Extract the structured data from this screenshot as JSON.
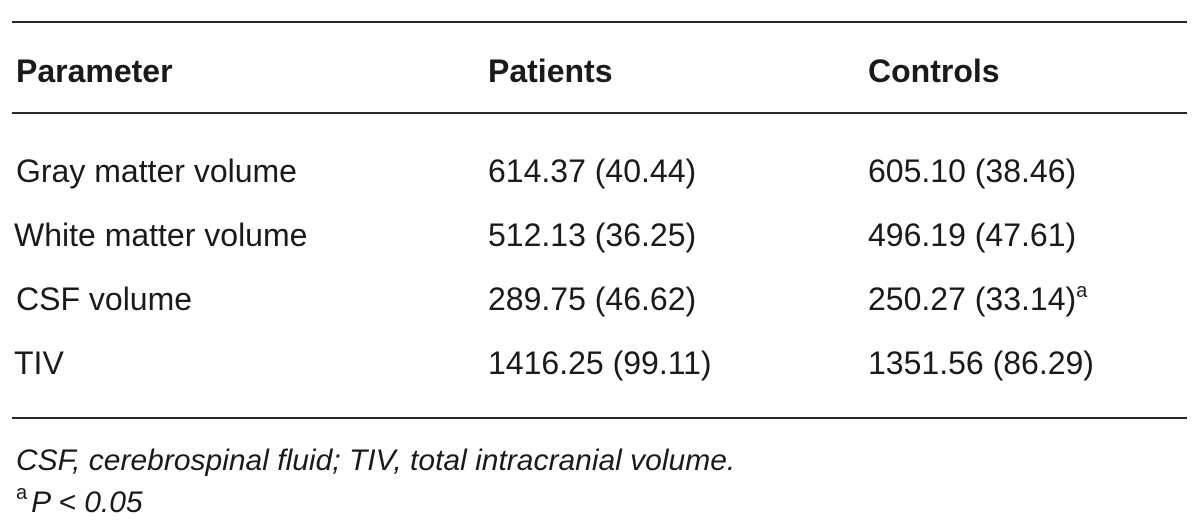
{
  "table": {
    "headers": [
      "Parameter",
      "Patients",
      "Controls"
    ],
    "rows": [
      {
        "parameter": "Gray matter volume",
        "patients": "614.37 (40.44)",
        "controls": "605.10 (38.46)",
        "controls_mark": ""
      },
      {
        "parameter": "White matter volume",
        "patients": "512.13 (36.25)",
        "controls": "496.19 (47.61)",
        "controls_mark": ""
      },
      {
        "parameter": "CSF volume",
        "patients": "289.75 (46.62)",
        "controls": "250.27 (33.14)",
        "controls_mark": "a"
      },
      {
        "parameter": "TIV",
        "patients": "1416.25 (99.11)",
        "controls": "1351.56 (86.29)",
        "controls_mark": ""
      }
    ]
  },
  "footnotes": {
    "abbreviations": "CSF, cerebrospinal fluid; TIV, total intracranial volume.",
    "mark": "a",
    "significance": "P < 0.05"
  }
}
